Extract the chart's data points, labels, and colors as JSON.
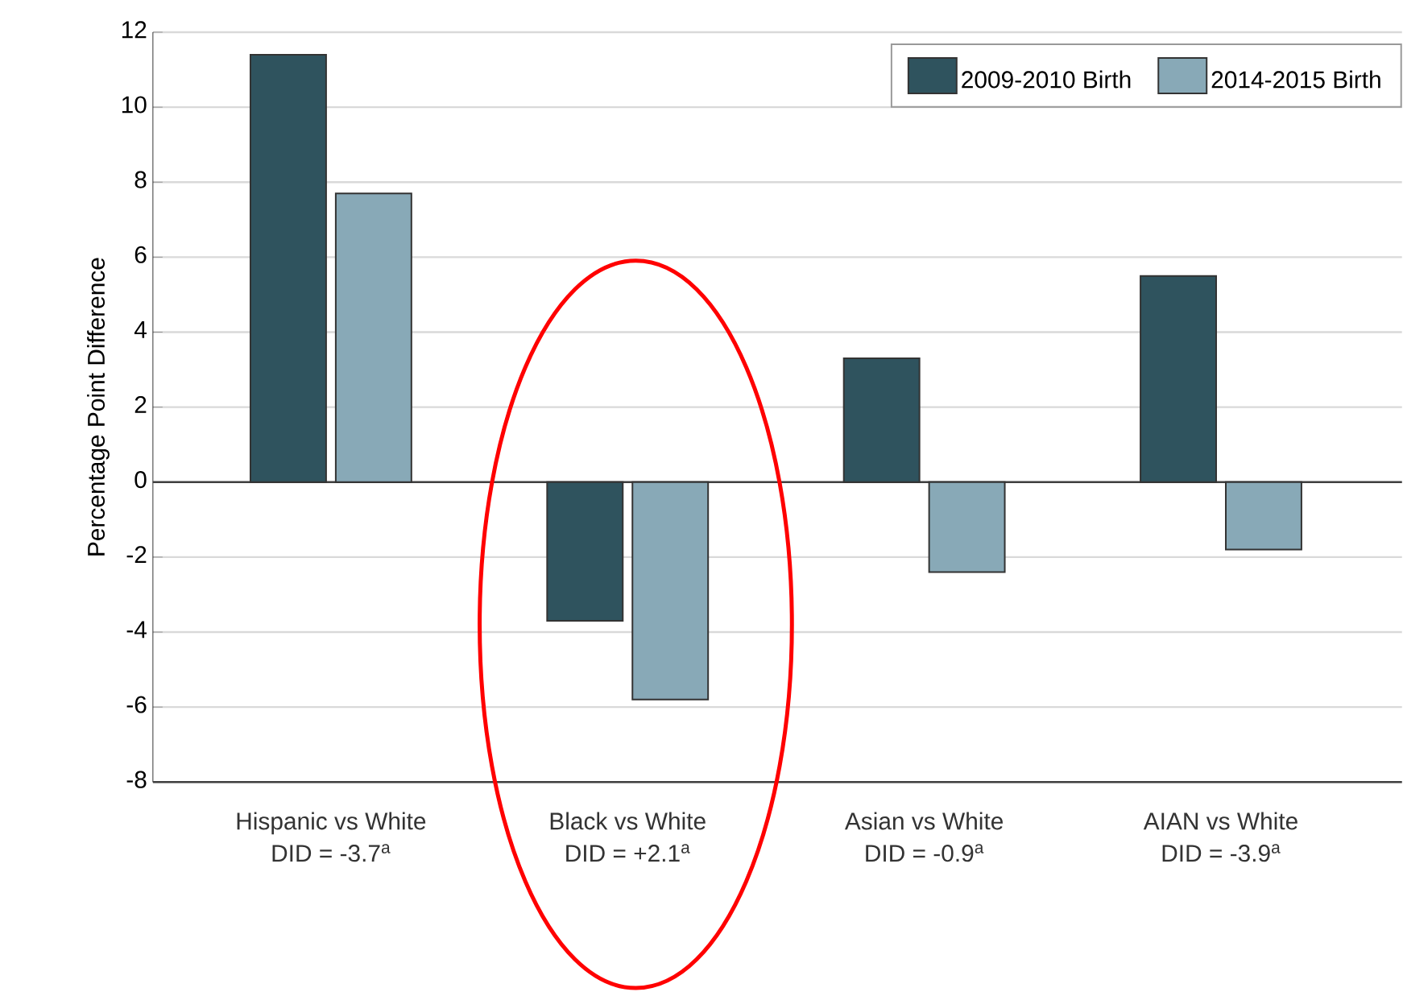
{
  "chart_data": {
    "type": "bar",
    "ylabel": "Percentage Point Difference",
    "categories": [
      "Hispanic vs White",
      "Black vs White",
      "Asian vs White",
      "AIAN vs White"
    ],
    "series": [
      {
        "name": "2009-2010 Birth",
        "color": "#2f535e",
        "values": [
          11.4,
          -3.7,
          3.3,
          5.5
        ]
      },
      {
        "name": "2014-2015 Birth",
        "color": "#88a9b7",
        "values": [
          7.7,
          -5.8,
          -2.4,
          -1.8
        ]
      }
    ],
    "annotations": [
      "DID = -3.7$^{a}$",
      "DID = +2.1$^{a}$",
      "DID = -0.9$^{a}$",
      "DID = -3.9$^{a}$"
    ],
    "ylim": [
      -8,
      12
    ],
    "yticks": [
      -8,
      -6,
      -4,
      -2,
      0,
      2,
      4,
      6,
      8,
      10,
      12
    ],
    "grid": "y",
    "legend": "top right"
  }
}
